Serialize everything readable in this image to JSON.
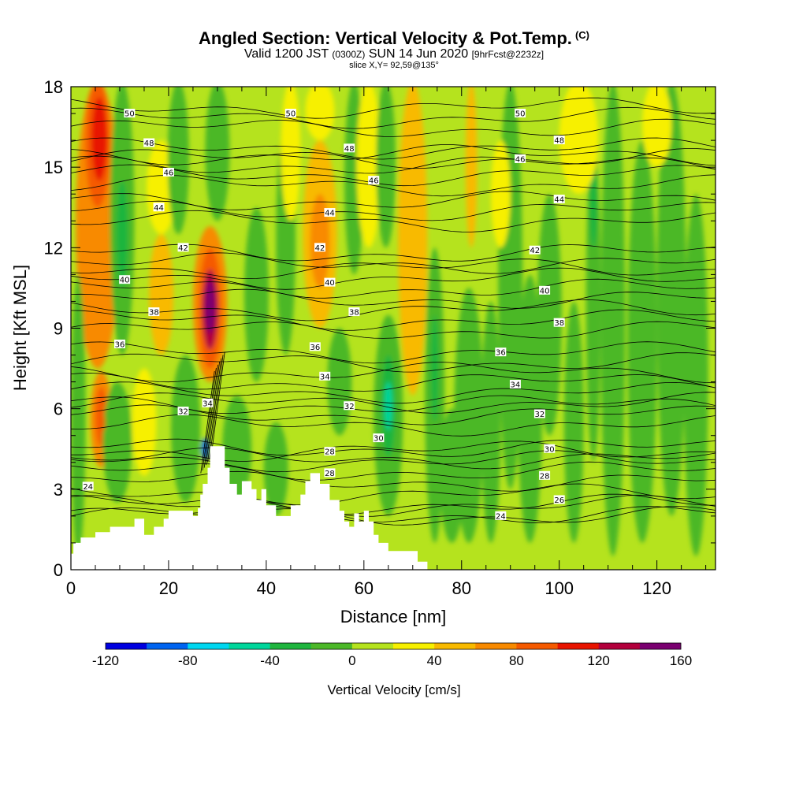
{
  "header": {
    "title": "Angled Section: Vertical Velocity & Pot.Temp.",
    "title_mark": "(C)",
    "subtitle_a": "Valid 1200 JST",
    "subtitle_b": "(0300Z)",
    "subtitle_c": "SUN 14 Jun 2020",
    "subtitle_d": "[9hrFcst@2232z]",
    "slice": "slice X,Y= 92,59@135°"
  },
  "chart_data": {
    "type": "heatmap",
    "xlabel": "Distance [nm]",
    "ylabel": "Height [Kft MSL]",
    "xlim": [
      0,
      132
    ],
    "ylim": [
      0,
      18
    ],
    "xticks": [
      0,
      20,
      40,
      60,
      80,
      100,
      120
    ],
    "yticks": [
      0,
      3,
      6,
      9,
      12,
      15,
      18
    ],
    "colorbar": {
      "title": "Vertical Velocity [cm/s]",
      "levels": [
        -120,
        -100,
        -80,
        -60,
        -40,
        -20,
        0,
        20,
        40,
        60,
        80,
        100,
        120,
        140,
        160
      ],
      "tick_labels": [
        "-120",
        "-80",
        "-40",
        "0",
        "40",
        "80",
        "120",
        "160"
      ],
      "tick_values": [
        -120,
        -80,
        -40,
        0,
        40,
        80,
        120,
        160
      ],
      "colors": [
        "#0000e0",
        "#0064f0",
        "#00d7f0",
        "#00d69b",
        "#1fb53e",
        "#4cb828",
        "#b5e31e",
        "#f7f000",
        "#f8ba00",
        "#f88a00",
        "#f55a00",
        "#e81400",
        "#b2003c",
        "#7a0070"
      ]
    },
    "potential_temperature_contours": [
      {
        "value": "24",
        "labels": [
          [
            3.5,
            3.1
          ],
          [
            88,
            2.0
          ]
        ]
      },
      {
        "value": "26",
        "labels": [
          [
            100,
            2.6
          ]
        ]
      },
      {
        "value": "28",
        "labels": [
          [
            53,
            3.6
          ],
          [
            53,
            4.4
          ],
          [
            97,
            3.5
          ]
        ]
      },
      {
        "value": "30",
        "labels": [
          [
            63,
            4.9
          ],
          [
            98,
            4.5
          ]
        ]
      },
      {
        "value": "32",
        "labels": [
          [
            23,
            5.9
          ],
          [
            57,
            6.1
          ],
          [
            96,
            5.8
          ]
        ]
      },
      {
        "value": "34",
        "labels": [
          [
            28,
            6.2
          ],
          [
            52,
            7.2
          ],
          [
            91,
            6.9
          ]
        ]
      },
      {
        "value": "36",
        "labels": [
          [
            10,
            8.4
          ],
          [
            50,
            8.3
          ],
          [
            88,
            8.1
          ]
        ]
      },
      {
        "value": "38",
        "labels": [
          [
            17,
            9.6
          ],
          [
            58,
            9.6
          ],
          [
            100,
            9.2
          ]
        ]
      },
      {
        "value": "40",
        "labels": [
          [
            11,
            10.8
          ],
          [
            53,
            10.7
          ],
          [
            97,
            10.4
          ]
        ]
      },
      {
        "value": "42",
        "labels": [
          [
            23,
            12.0
          ],
          [
            51,
            12.0
          ],
          [
            95,
            11.9
          ]
        ]
      },
      {
        "value": "44",
        "labels": [
          [
            18,
            13.5
          ],
          [
            53,
            13.3
          ],
          [
            100,
            13.8
          ]
        ]
      },
      {
        "value": "46",
        "labels": [
          [
            20,
            14.8
          ],
          [
            62,
            14.5
          ],
          [
            92,
            15.3
          ]
        ]
      },
      {
        "value": "48",
        "labels": [
          [
            16,
            15.9
          ],
          [
            57,
            15.7
          ],
          [
            100,
            16.0
          ]
        ]
      },
      {
        "value": "50",
        "labels": [
          [
            12,
            17.0
          ],
          [
            45,
            17.0
          ],
          [
            92,
            17.0
          ]
        ]
      }
    ],
    "vertical_velocity_features": [
      {
        "x": 5.5,
        "y": 15.8,
        "value": 110
      },
      {
        "x": 28.5,
        "y": 9.8,
        "value": 160
      },
      {
        "x": 6.2,
        "y": 5.5,
        "value": 80
      },
      {
        "x": 10.5,
        "y": 12.5,
        "value": -40
      },
      {
        "x": 65,
        "y": 6.1,
        "value": -60
      },
      {
        "x": 27.5,
        "y": 4.5,
        "value": -100
      },
      {
        "x": 74.5,
        "y": 7.5,
        "value": -40
      },
      {
        "x": 51,
        "y": 12.5,
        "value": 60
      },
      {
        "x": 70,
        "y": 9.0,
        "value": 40
      },
      {
        "x": 98,
        "y": 12.0,
        "value": -20
      },
      {
        "x": 123,
        "y": 12.0,
        "value": -20
      }
    ],
    "terrain_profile": [
      [
        0,
        0.6
      ],
      [
        0.5,
        0.6
      ],
      [
        0.5,
        1.0
      ],
      [
        2,
        1.0
      ],
      [
        2,
        1.2
      ],
      [
        5,
        1.2
      ],
      [
        5,
        1.4
      ],
      [
        8,
        1.4
      ],
      [
        8,
        1.6
      ],
      [
        13,
        1.6
      ],
      [
        13,
        1.9
      ],
      [
        15,
        1.9
      ],
      [
        15,
        1.3
      ],
      [
        17,
        1.3
      ],
      [
        17,
        1.6
      ],
      [
        19,
        1.6
      ],
      [
        19,
        1.9
      ],
      [
        20,
        1.9
      ],
      [
        20,
        2.2
      ],
      [
        25,
        2.2
      ],
      [
        25,
        2.0
      ],
      [
        26,
        2.0
      ],
      [
        26,
        2.3
      ],
      [
        26.5,
        2.3
      ],
      [
        26.5,
        2.8
      ],
      [
        27,
        2.8
      ],
      [
        27,
        3.2
      ],
      [
        28,
        3.2
      ],
      [
        28,
        3.8
      ],
      [
        28.5,
        3.8
      ],
      [
        28.5,
        4.6
      ],
      [
        31.5,
        4.6
      ],
      [
        31.5,
        3.8
      ],
      [
        32.5,
        3.8
      ],
      [
        32.5,
        3.2
      ],
      [
        34,
        3.2
      ],
      [
        34,
        2.8
      ],
      [
        35,
        2.8
      ],
      [
        35,
        3.3
      ],
      [
        37,
        3.3
      ],
      [
        37,
        3.0
      ],
      [
        38,
        3.0
      ],
      [
        38,
        2.6
      ],
      [
        39,
        2.6
      ],
      [
        39,
        3.0
      ],
      [
        40,
        3.0
      ],
      [
        40,
        2.4
      ],
      [
        42,
        2.4
      ],
      [
        42,
        2.0
      ],
      [
        45,
        2.0
      ],
      [
        45,
        2.4
      ],
      [
        47,
        2.4
      ],
      [
        47,
        2.8
      ],
      [
        48,
        2.8
      ],
      [
        48,
        3.3
      ],
      [
        49,
        3.3
      ],
      [
        49,
        3.6
      ],
      [
        51,
        3.6
      ],
      [
        51,
        3.2
      ],
      [
        53,
        3.2
      ],
      [
        53,
        2.6
      ],
      [
        55,
        2.6
      ],
      [
        55,
        2.2
      ],
      [
        56,
        2.2
      ],
      [
        56,
        1.8
      ],
      [
        57,
        1.8
      ],
      [
        57,
        1.6
      ],
      [
        58,
        1.6
      ],
      [
        58,
        2.1
      ],
      [
        59,
        2.1
      ],
      [
        59,
        1.8
      ],
      [
        60,
        1.8
      ],
      [
        60,
        2.2
      ],
      [
        61,
        2.2
      ],
      [
        61,
        1.8
      ],
      [
        62,
        1.8
      ],
      [
        62,
        1.3
      ],
      [
        63,
        1.3
      ],
      [
        63,
        1.0
      ],
      [
        65,
        1.0
      ],
      [
        65,
        0.7
      ],
      [
        71,
        0.7
      ],
      [
        71,
        0.3
      ],
      [
        73,
        0.3
      ],
      [
        73,
        0.0
      ],
      [
        132,
        0.0
      ]
    ]
  }
}
